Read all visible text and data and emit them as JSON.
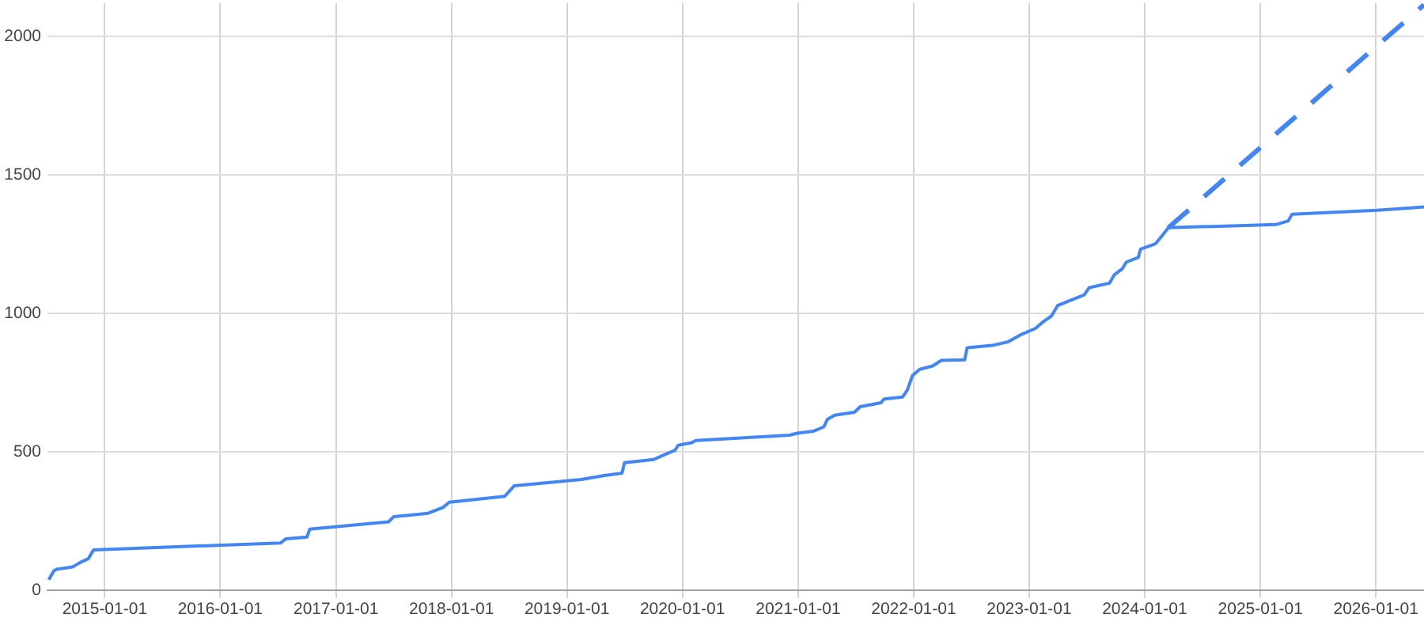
{
  "chart_data": {
    "type": "line",
    "series": [
      {
        "color": "#4285f4",
        "line_style": "solid",
        "x": [
          "2014-07-08",
          "2014-07-24",
          "2014-08-02",
          "2014-09-21",
          "2014-10-13",
          "2014-11-10",
          "2014-11-27",
          "2016-07-10",
          "2016-07-27",
          "2016-10-01",
          "2016-10-10",
          "2017-06-16",
          "2017-07-03",
          "2017-10-19",
          "2017-12-05",
          "2017-12-25",
          "2018-06-18",
          "2018-07-18",
          "2019-02-15",
          "2019-04-22",
          "2019-06-24",
          "2019-07-02",
          "2019-10-02",
          "2019-11-08",
          "2019-12-08",
          "2019-12-19",
          "2020-01-30",
          "2020-02-12",
          "2020-12-04",
          "2020-12-29",
          "2021-02-17",
          "2021-03-23",
          "2021-04-03",
          "2021-04-26",
          "2021-06-28",
          "2021-07-16",
          "2021-09-19",
          "2021-09-30",
          "2021-11-27",
          "2021-12-12",
          "2021-12-28",
          "2022-01-20",
          "2022-03-02",
          "2022-03-29",
          "2022-06-11",
          "2022-06-19",
          "2022-09-06",
          "2022-10-26",
          "2022-12-06",
          "2023-01-20",
          "2023-02-16",
          "2023-03-12",
          "2023-04-01",
          "2023-06-24",
          "2023-07-10",
          "2023-09-12",
          "2023-09-27",
          "2023-10-23",
          "2023-11-04",
          "2023-12-12",
          "2023-12-19",
          "2024-02-04",
          "2024-02-29",
          "2024-03-16",
          "2025-02-21",
          "2025-03-30",
          "2025-04-11",
          "2026-01-04",
          "2026-06-02"
        ],
        "values": [
          38,
          70,
          76,
          84,
          99,
          114,
          146,
          171,
          186,
          192,
          221,
          247,
          266,
          278,
          299,
          318,
          339,
          377,
          400,
          413,
          423,
          461,
          472,
          491,
          505,
          524,
          533,
          541,
          560,
          567,
          574,
          590,
          617,
          632,
          643,
          663,
          677,
          691,
          698,
          723,
          775,
          798,
          810,
          830,
          832,
          876,
          884,
          897,
          923,
          945,
          971,
          990,
          1028,
          1067,
          1093,
          1109,
          1139,
          1162,
          1185,
          1202,
          1232,
          1251,
          1286,
          1309,
          1321,
          1334,
          1358,
          1372,
          1384
        ]
      },
      {
        "color": "#4285f4",
        "line_style": "dashed",
        "x": [
          "2024-03-16",
          "2026-06-02"
        ],
        "values": [
          1309,
          2114
        ]
      }
    ],
    "xlim": [
      "2014-07-04",
      "2026-06-02"
    ],
    "xticks": [
      "2015-01-01",
      "2016-01-01",
      "2017-01-01",
      "2018-01-01",
      "2019-01-01",
      "2020-01-01",
      "2021-01-01",
      "2022-01-01",
      "2023-01-01",
      "2024-01-01",
      "2025-01-01",
      "2026-01-01"
    ],
    "ylim": [
      0,
      2120
    ],
    "yticks": [
      0,
      500,
      1000,
      1500,
      2000
    ],
    "grid": true
  }
}
